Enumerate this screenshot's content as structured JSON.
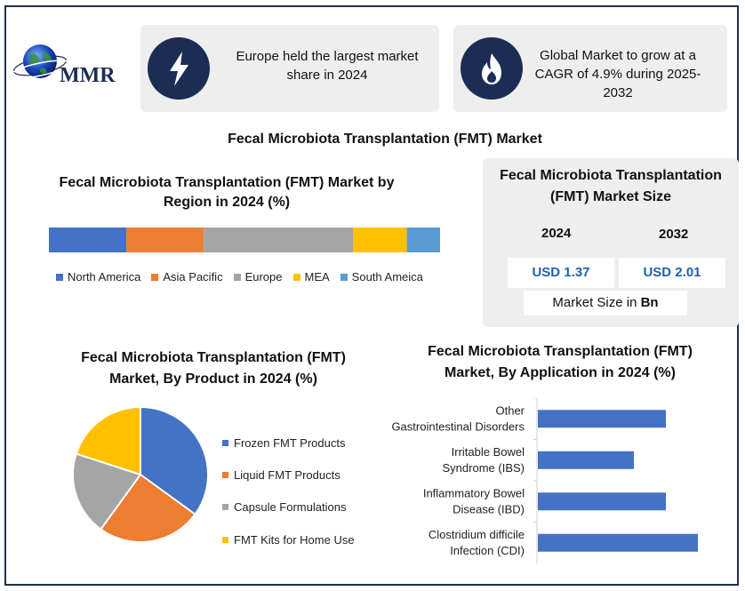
{
  "brand": {
    "logo_text": "MMR"
  },
  "cards": [
    {
      "icon": "lightning-icon",
      "text": "Europe held the largest market share in 2024"
    },
    {
      "icon": "flame-icon",
      "text": "Global Market to grow at a CAGR of 4.9% during 2025-2032"
    }
  ],
  "main_title": "Fecal Microbiota Transplantation (FMT) Market",
  "market_size": {
    "title": "Fecal Microbiota Transplantation (FMT) Market Size",
    "year_1": "2024",
    "year_2": "2032",
    "value_1": "USD 1.37",
    "value_2": "USD 2.01",
    "unit_prefix": "Market Size in ",
    "unit_bold": "Bn"
  },
  "colors": {
    "blue": "#4472c4",
    "orange": "#ed7d31",
    "gray": "#a5a5a5",
    "gold": "#ffc000",
    "lightblue": "#5b9bd5",
    "navy": "#1c2d55"
  },
  "chart_data": [
    {
      "type": "bar",
      "orientation": "horizontal-stacked",
      "title": "Fecal Microbiota Transplantation (FMT) Market by Region in 2024 (%)",
      "series": [
        {
          "name": "North America",
          "value": 19.8,
          "color": "#4472c4"
        },
        {
          "name": "Asia Pacific",
          "value": 19.8,
          "color": "#ed7d31"
        },
        {
          "name": "Europe",
          "value": 38.2,
          "color": "#a5a5a5"
        },
        {
          "name": "MEA",
          "value": 13.7,
          "color": "#ffc000"
        },
        {
          "name": "South Ameica",
          "value": 8.5,
          "color": "#5b9bd5"
        }
      ],
      "legend": "bottom"
    },
    {
      "type": "pie",
      "title": "Fecal Microbiota Transplantation (FMT) Market, By Product in 2024 (%)",
      "categories": [
        "Frozen FMT Products",
        "Liquid FMT Products",
        "Capsule Formulations",
        "FMT Kits for Home Use"
      ],
      "values": [
        35,
        25,
        20,
        20
      ],
      "colors": [
        "#4472c4",
        "#ed7d31",
        "#a5a5a5",
        "#ffc000"
      ],
      "legend": "right"
    },
    {
      "type": "bar",
      "orientation": "horizontal",
      "title": "Fecal Microbiota Transplantation (FMT) Market, By Application in 2024 (%)",
      "categories": [
        "Other Gastrointestinal Disorders",
        "Irritable Bowel Syndrome (IBS)",
        "Inflammatory Bowel Disease (IBD)",
        "Clostridium difficile Infection (CDI)"
      ],
      "values": [
        24,
        18,
        24,
        30
      ],
      "xlim": [
        0,
        35
      ],
      "color": "#4472c4",
      "grid": false
    }
  ]
}
